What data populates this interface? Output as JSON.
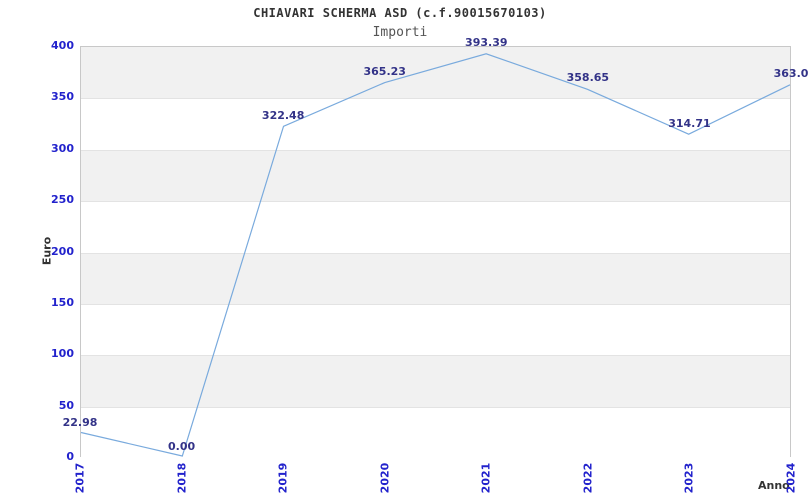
{
  "header": {
    "title": "CHIAVARI SCHERMA ASD (c.f.90015670103)",
    "subtitle": "Importi"
  },
  "chart_data": {
    "type": "line",
    "title": "CHIAVARI SCHERMA ASD (c.f.90015670103)",
    "subtitle": "Importi",
    "xlabel": "Anno",
    "ylabel": "Euro",
    "x": [
      "2017",
      "2018",
      "2019",
      "2020",
      "2021",
      "2022",
      "2023",
      "2024"
    ],
    "values": [
      22.98,
      0.0,
      322.48,
      365.23,
      393.39,
      358.65,
      314.71,
      363.0
    ],
    "point_labels": [
      "22.98",
      "0.00",
      "322.48",
      "365.23",
      "393.39",
      "358.65",
      "314.71",
      "363.0"
    ],
    "ylim": [
      0,
      400
    ],
    "yticks": [
      0,
      50,
      100,
      150,
      200,
      250,
      300,
      350,
      400
    ],
    "ytick_labels": [
      "0",
      "50",
      "100",
      "150",
      "200",
      "250",
      "300",
      "350",
      "400"
    ],
    "grid": "alternating-horizontal-bands",
    "legend": "none",
    "x_tick_rotation": -90,
    "colors": {
      "line": "#79aadd",
      "tick_label": "#2222cc",
      "data_label": "#333388",
      "band_gray": "#f1f1f1",
      "band_white": "#ffffff",
      "grid_line": "#e3e3e3",
      "plot_border": "#c8c8c8",
      "title": "#333333",
      "subtitle": "#555555",
      "axis_title": "#333333",
      "background": "#ffffff"
    }
  }
}
